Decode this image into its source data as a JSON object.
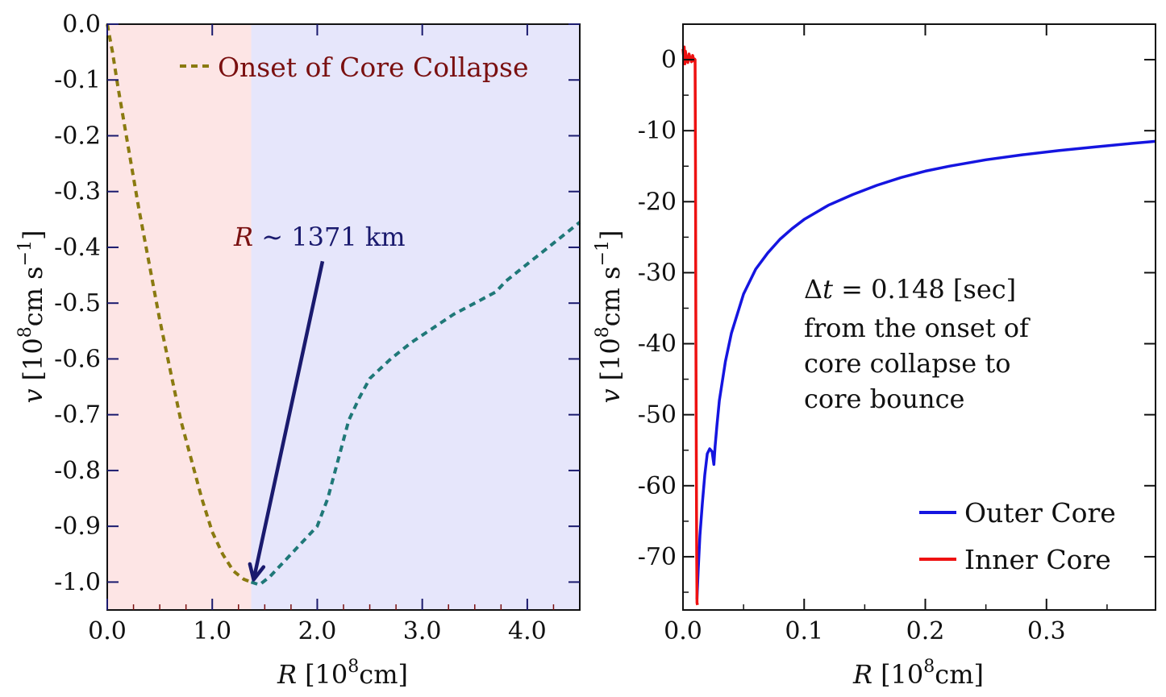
{
  "chart_data": [
    {
      "type": "line",
      "xlabel": "R [10^8cm]",
      "xlabel_parts": {
        "var": "R",
        "unit": "[10",
        "exp": "8",
        "tail": "cm]"
      },
      "ylabel_parts": {
        "var": "v",
        "unit": "[10",
        "exp": "8",
        "mid": "cm s",
        "exp2": "−1",
        "tail": "]"
      },
      "xlim": [
        0.0,
        4.5
      ],
      "ylim": [
        -1.05,
        0.0
      ],
      "xticks": [
        {
          "value": 0.0,
          "label": "0.0"
        },
        {
          "value": 1.0,
          "label": "1.0"
        },
        {
          "value": 2.0,
          "label": "2.0"
        },
        {
          "value": 3.0,
          "label": "3.0"
        },
        {
          "value": 4.0,
          "label": "4.0"
        }
      ],
      "yticks": [
        {
          "value": 0.0,
          "label": "0.0"
        },
        {
          "value": -0.1,
          "label": "-0.1"
        },
        {
          "value": -0.2,
          "label": "-0.2"
        },
        {
          "value": -0.3,
          "label": "-0.3"
        },
        {
          "value": -0.4,
          "label": "-0.4"
        },
        {
          "value": -0.5,
          "label": "-0.5"
        },
        {
          "value": -0.6,
          "label": "-0.6"
        },
        {
          "value": -0.7,
          "label": "-0.7"
        },
        {
          "value": -0.8,
          "label": "-0.8"
        },
        {
          "value": -0.9,
          "label": "-0.9"
        },
        {
          "value": -1.0,
          "label": "-1.0"
        }
      ],
      "regions": [
        {
          "x0": 0.0,
          "x1": 1.371,
          "color": "#fde5e5"
        },
        {
          "x0": 1.371,
          "x1": 4.5,
          "color": "#e6e6fb"
        }
      ],
      "legend": {
        "placement": "top",
        "label": "Onset of Core Collapse",
        "label_color": "#7a1010",
        "marker_color": "#8a7a10"
      },
      "annotation": {
        "var": "R",
        "text": " ∼ 1371 km",
        "color": "#1a1a6e",
        "var_color": "#7a1010",
        "point": {
          "x": 1.371,
          "y": -1.0
        },
        "from": {
          "x": 2.05,
          "y": -0.425
        }
      },
      "series": [
        {
          "style": "dashed",
          "color": "#8a7a10",
          "x": [
            0.0,
            0.05,
            0.1,
            0.2,
            0.3,
            0.4,
            0.5,
            0.6,
            0.7,
            0.8,
            0.9,
            1.0,
            1.1,
            1.2,
            1.3,
            1.371
          ],
          "y": [
            0.0,
            -0.05,
            -0.11,
            -0.22,
            -0.33,
            -0.43,
            -0.53,
            -0.62,
            -0.71,
            -0.78,
            -0.85,
            -0.91,
            -0.95,
            -0.98,
            -0.995,
            -1.0
          ]
        },
        {
          "style": "dashed",
          "color": "#1f7878",
          "x": [
            1.371,
            1.45,
            1.55,
            1.7,
            1.85,
            2.0,
            2.1,
            2.2,
            2.3,
            2.4,
            2.5,
            2.7,
            2.9,
            3.1,
            3.3,
            3.5,
            3.7,
            3.8,
            4.0,
            4.2,
            4.4,
            4.5
          ],
          "y": [
            -1.0,
            -1.005,
            -0.99,
            -0.96,
            -0.93,
            -0.9,
            -0.85,
            -0.78,
            -0.71,
            -0.67,
            -0.635,
            -0.6,
            -0.57,
            -0.545,
            -0.52,
            -0.5,
            -0.48,
            -0.46,
            -0.43,
            -0.4,
            -0.37,
            -0.355
          ]
        }
      ]
    },
    {
      "type": "line",
      "xlabel_parts": {
        "var": "R",
        "unit": "[10",
        "exp": "8",
        "tail": "cm]"
      },
      "ylabel_parts": {
        "var": "v",
        "unit": "[10",
        "exp": "8",
        "mid": "cm s",
        "exp2": "−1",
        "tail": "]"
      },
      "xlim": [
        0.0,
        0.39
      ],
      "ylim": [
        -77.5,
        5.0
      ],
      "xticks": [
        {
          "value": 0.0,
          "label": "0.0"
        },
        {
          "value": 0.1,
          "label": "0.1"
        },
        {
          "value": 0.2,
          "label": "0.2"
        },
        {
          "value": 0.3,
          "label": "0.3"
        }
      ],
      "yticks": [
        {
          "value": 0,
          "label": "0"
        },
        {
          "value": -10,
          "label": "-10"
        },
        {
          "value": -20,
          "label": "-20"
        },
        {
          "value": -30,
          "label": "-30"
        },
        {
          "value": -40,
          "label": "-40"
        },
        {
          "value": -50,
          "label": "-50"
        },
        {
          "value": -60,
          "label": "-60"
        },
        {
          "value": -70,
          "label": "-70"
        }
      ],
      "note": {
        "lines": [
          "t = 0.148 [sec]",
          "from the onset of",
          "core collapse to",
          "core bounce"
        ],
        "prefix": "Δ",
        "eq_var": "t",
        "eq_rest": " = 0.148 [sec]"
      },
      "legend": {
        "placement": "bottom-right"
      },
      "series": [
        {
          "name": "Outer Core",
          "color": "#1515e0",
          "x": [
            0.0115,
            0.0125,
            0.014,
            0.016,
            0.018,
            0.02,
            0.022,
            0.024,
            0.0255,
            0.0265,
            0.028,
            0.03,
            0.035,
            0.04,
            0.05,
            0.06,
            0.07,
            0.08,
            0.09,
            0.1,
            0.12,
            0.14,
            0.16,
            0.18,
            0.2,
            0.22,
            0.25,
            0.28,
            0.31,
            0.34,
            0.37,
            0.39
          ],
          "y": [
            -76.0,
            -72.0,
            -67.0,
            -62.5,
            -58.5,
            -55.5,
            -54.8,
            -55.2,
            -57.0,
            -54.5,
            -51.5,
            -48.0,
            -42.5,
            -38.5,
            -33.0,
            -29.5,
            -27.2,
            -25.3,
            -23.8,
            -22.5,
            -20.5,
            -19.0,
            -17.7,
            -16.6,
            -15.7,
            -15.0,
            -14.1,
            -13.4,
            -12.8,
            -12.3,
            -11.8,
            -11.5
          ]
        },
        {
          "name": "Inner Core",
          "color": "#ee1111",
          "x": [
            0.0,
            0.0005,
            0.001,
            0.0015,
            0.002,
            0.003,
            0.004,
            0.005,
            0.006,
            0.007,
            0.008,
            0.009,
            0.0095,
            0.01,
            0.0103,
            0.0106,
            0.011,
            0.0113,
            0.0116,
            0.012
          ],
          "y": [
            1.5,
            0.5,
            1.8,
            -0.6,
            1.2,
            0.0,
            -0.4,
            0.8,
            0.2,
            -0.3,
            0.6,
            -0.2,
            0.1,
            0.0,
            -15.0,
            -35.0,
            -55.0,
            -70.0,
            -76.5,
            -76.8
          ]
        }
      ]
    }
  ]
}
